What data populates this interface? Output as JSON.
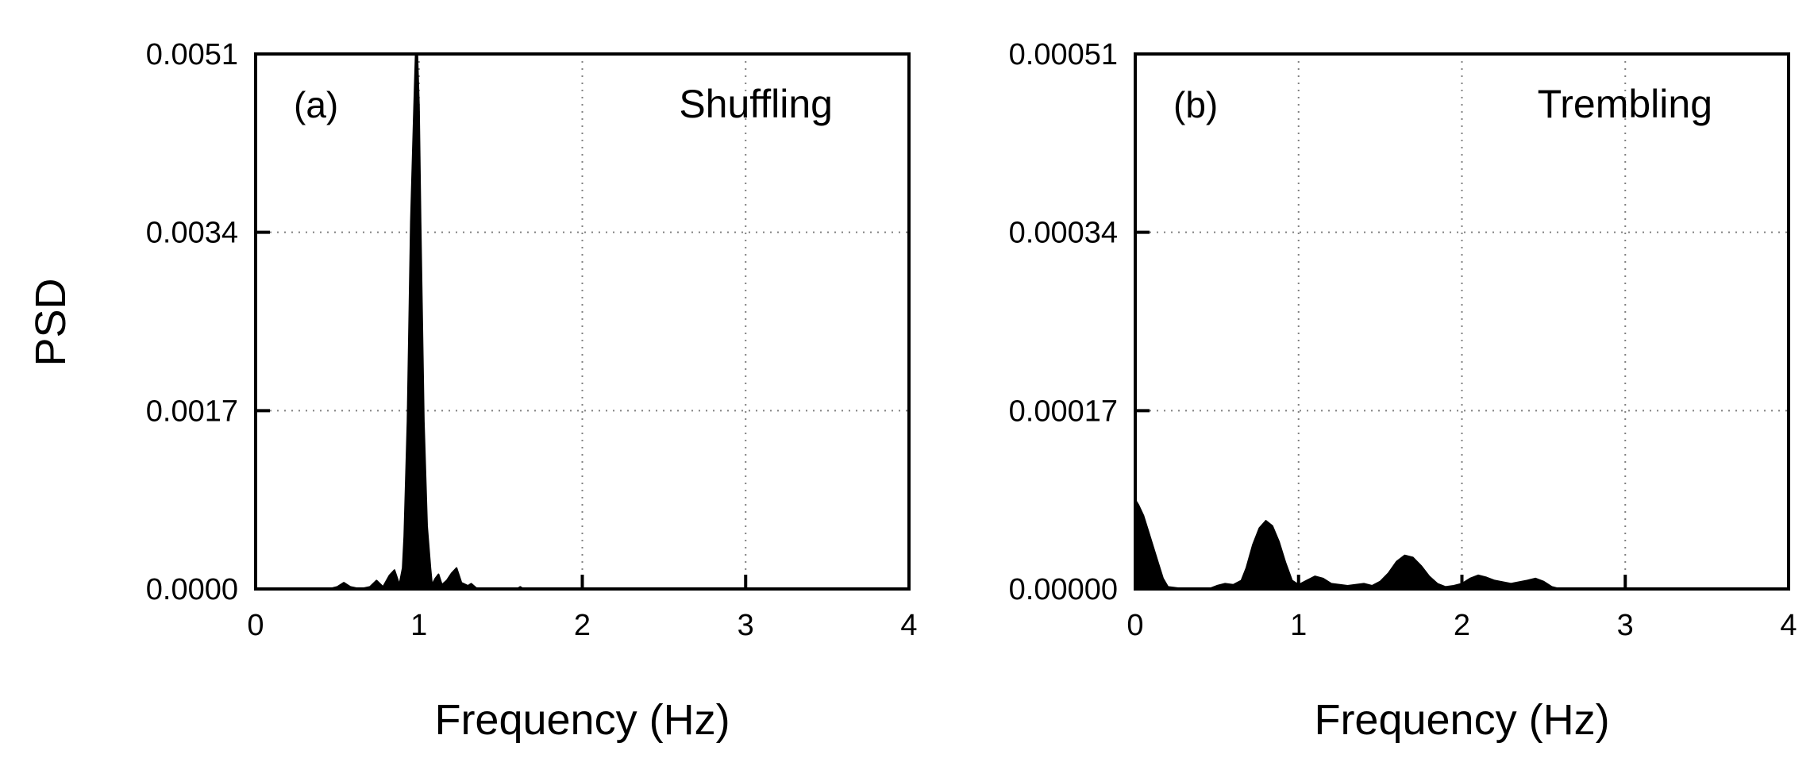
{
  "figure": {
    "ylabel": "PSD"
  },
  "chart_data": [
    {
      "type": "area",
      "panel_label": "(a)",
      "title": "Shuffling",
      "xlabel": "Frequency (Hz)",
      "ylabel": "PSD",
      "xlim": [
        0,
        4
      ],
      "ylim": [
        0,
        0.0051
      ],
      "x_ticks": [
        "0",
        "1",
        "2",
        "3",
        "4"
      ],
      "y_ticks": [
        "0.0000",
        "0.0017",
        "0.0034",
        "0.0051"
      ],
      "grid": true,
      "series": [
        {
          "x": [
            0,
            0.45,
            0.5,
            0.54,
            0.58,
            0.64,
            0.7,
            0.74,
            0.78,
            0.82,
            0.85,
            0.88,
            0.9,
            0.91,
            0.93,
            0.95,
            0.97,
            0.98,
            0.99,
            1.0,
            1.01,
            1.03,
            1.05,
            1.07,
            1.08,
            1.1,
            1.12,
            1.14,
            1.17,
            1.2,
            1.23,
            1.26,
            1.3,
            1.32,
            1.35,
            1.4,
            1.6,
            1.62,
            1.64,
            2.0,
            4.0
          ],
          "y": [
            0,
            0,
            2e-05,
            6e-05,
            2e-05,
            0,
            2e-05,
            8e-05,
            2e-05,
            0.00013,
            0.00018,
            4e-05,
            0.0002,
            0.0005,
            0.0016,
            0.0035,
            0.0046,
            0.0051,
            0.0051,
            0.0046,
            0.0035,
            0.0016,
            0.0006,
            0.0002,
            4e-05,
            0.0001,
            0.00014,
            4e-05,
            8e-05,
            0.00015,
            0.0002,
            6e-05,
            3e-05,
            5e-05,
            1e-05,
            0,
            0,
            2e-05,
            0,
            0,
            0
          ]
        }
      ]
    },
    {
      "type": "area",
      "panel_label": "(b)",
      "title": "Trembling",
      "xlabel": "Frequency (Hz)",
      "ylabel": "",
      "xlim": [
        0,
        4
      ],
      "ylim": [
        0,
        0.00051
      ],
      "x_ticks": [
        "0",
        "1",
        "2",
        "3",
        "4"
      ],
      "y_ticks": [
        "0.00000",
        "0.00017",
        "0.00034",
        "0.00051"
      ],
      "grid": true,
      "series": [
        {
          "x": [
            0,
            0.02,
            0.05,
            0.08,
            0.11,
            0.14,
            0.17,
            0.2,
            0.3,
            0.45,
            0.5,
            0.55,
            0.6,
            0.65,
            0.68,
            0.72,
            0.76,
            0.8,
            0.84,
            0.88,
            0.92,
            0.96,
            1.0,
            1.05,
            1.1,
            1.15,
            1.2,
            1.3,
            1.4,
            1.45,
            1.5,
            1.55,
            1.6,
            1.65,
            1.7,
            1.75,
            1.8,
            1.85,
            1.9,
            1.95,
            2.0,
            2.05,
            2.1,
            2.15,
            2.2,
            2.3,
            2.4,
            2.45,
            2.5,
            2.55,
            2.6,
            4.0
          ],
          "y": [
            8.5e-05,
            8e-05,
            7e-05,
            5.5e-05,
            4e-05,
            2.5e-05,
            1e-05,
            2e-06,
            0,
            0,
            3e-06,
            5e-06,
            4e-06,
            8e-06,
            2e-05,
            4.2e-05,
            5.8e-05,
            6.5e-05,
            6e-05,
            4.5e-05,
            2.5e-05,
            8e-06,
            4e-06,
            8e-06,
            1.2e-05,
            1e-05,
            5e-06,
            3e-06,
            5e-06,
            3e-06,
            7e-06,
            1.5e-05,
            2.6e-05,
            3.2e-05,
            3e-05,
            2.2e-05,
            1.2e-05,
            5e-06,
            2e-06,
            3e-06,
            5e-06,
            1e-05,
            1.3e-05,
            1.1e-05,
            8e-06,
            5e-06,
            8e-06,
            1e-05,
            7e-06,
            2e-06,
            0,
            0
          ]
        }
      ]
    }
  ]
}
